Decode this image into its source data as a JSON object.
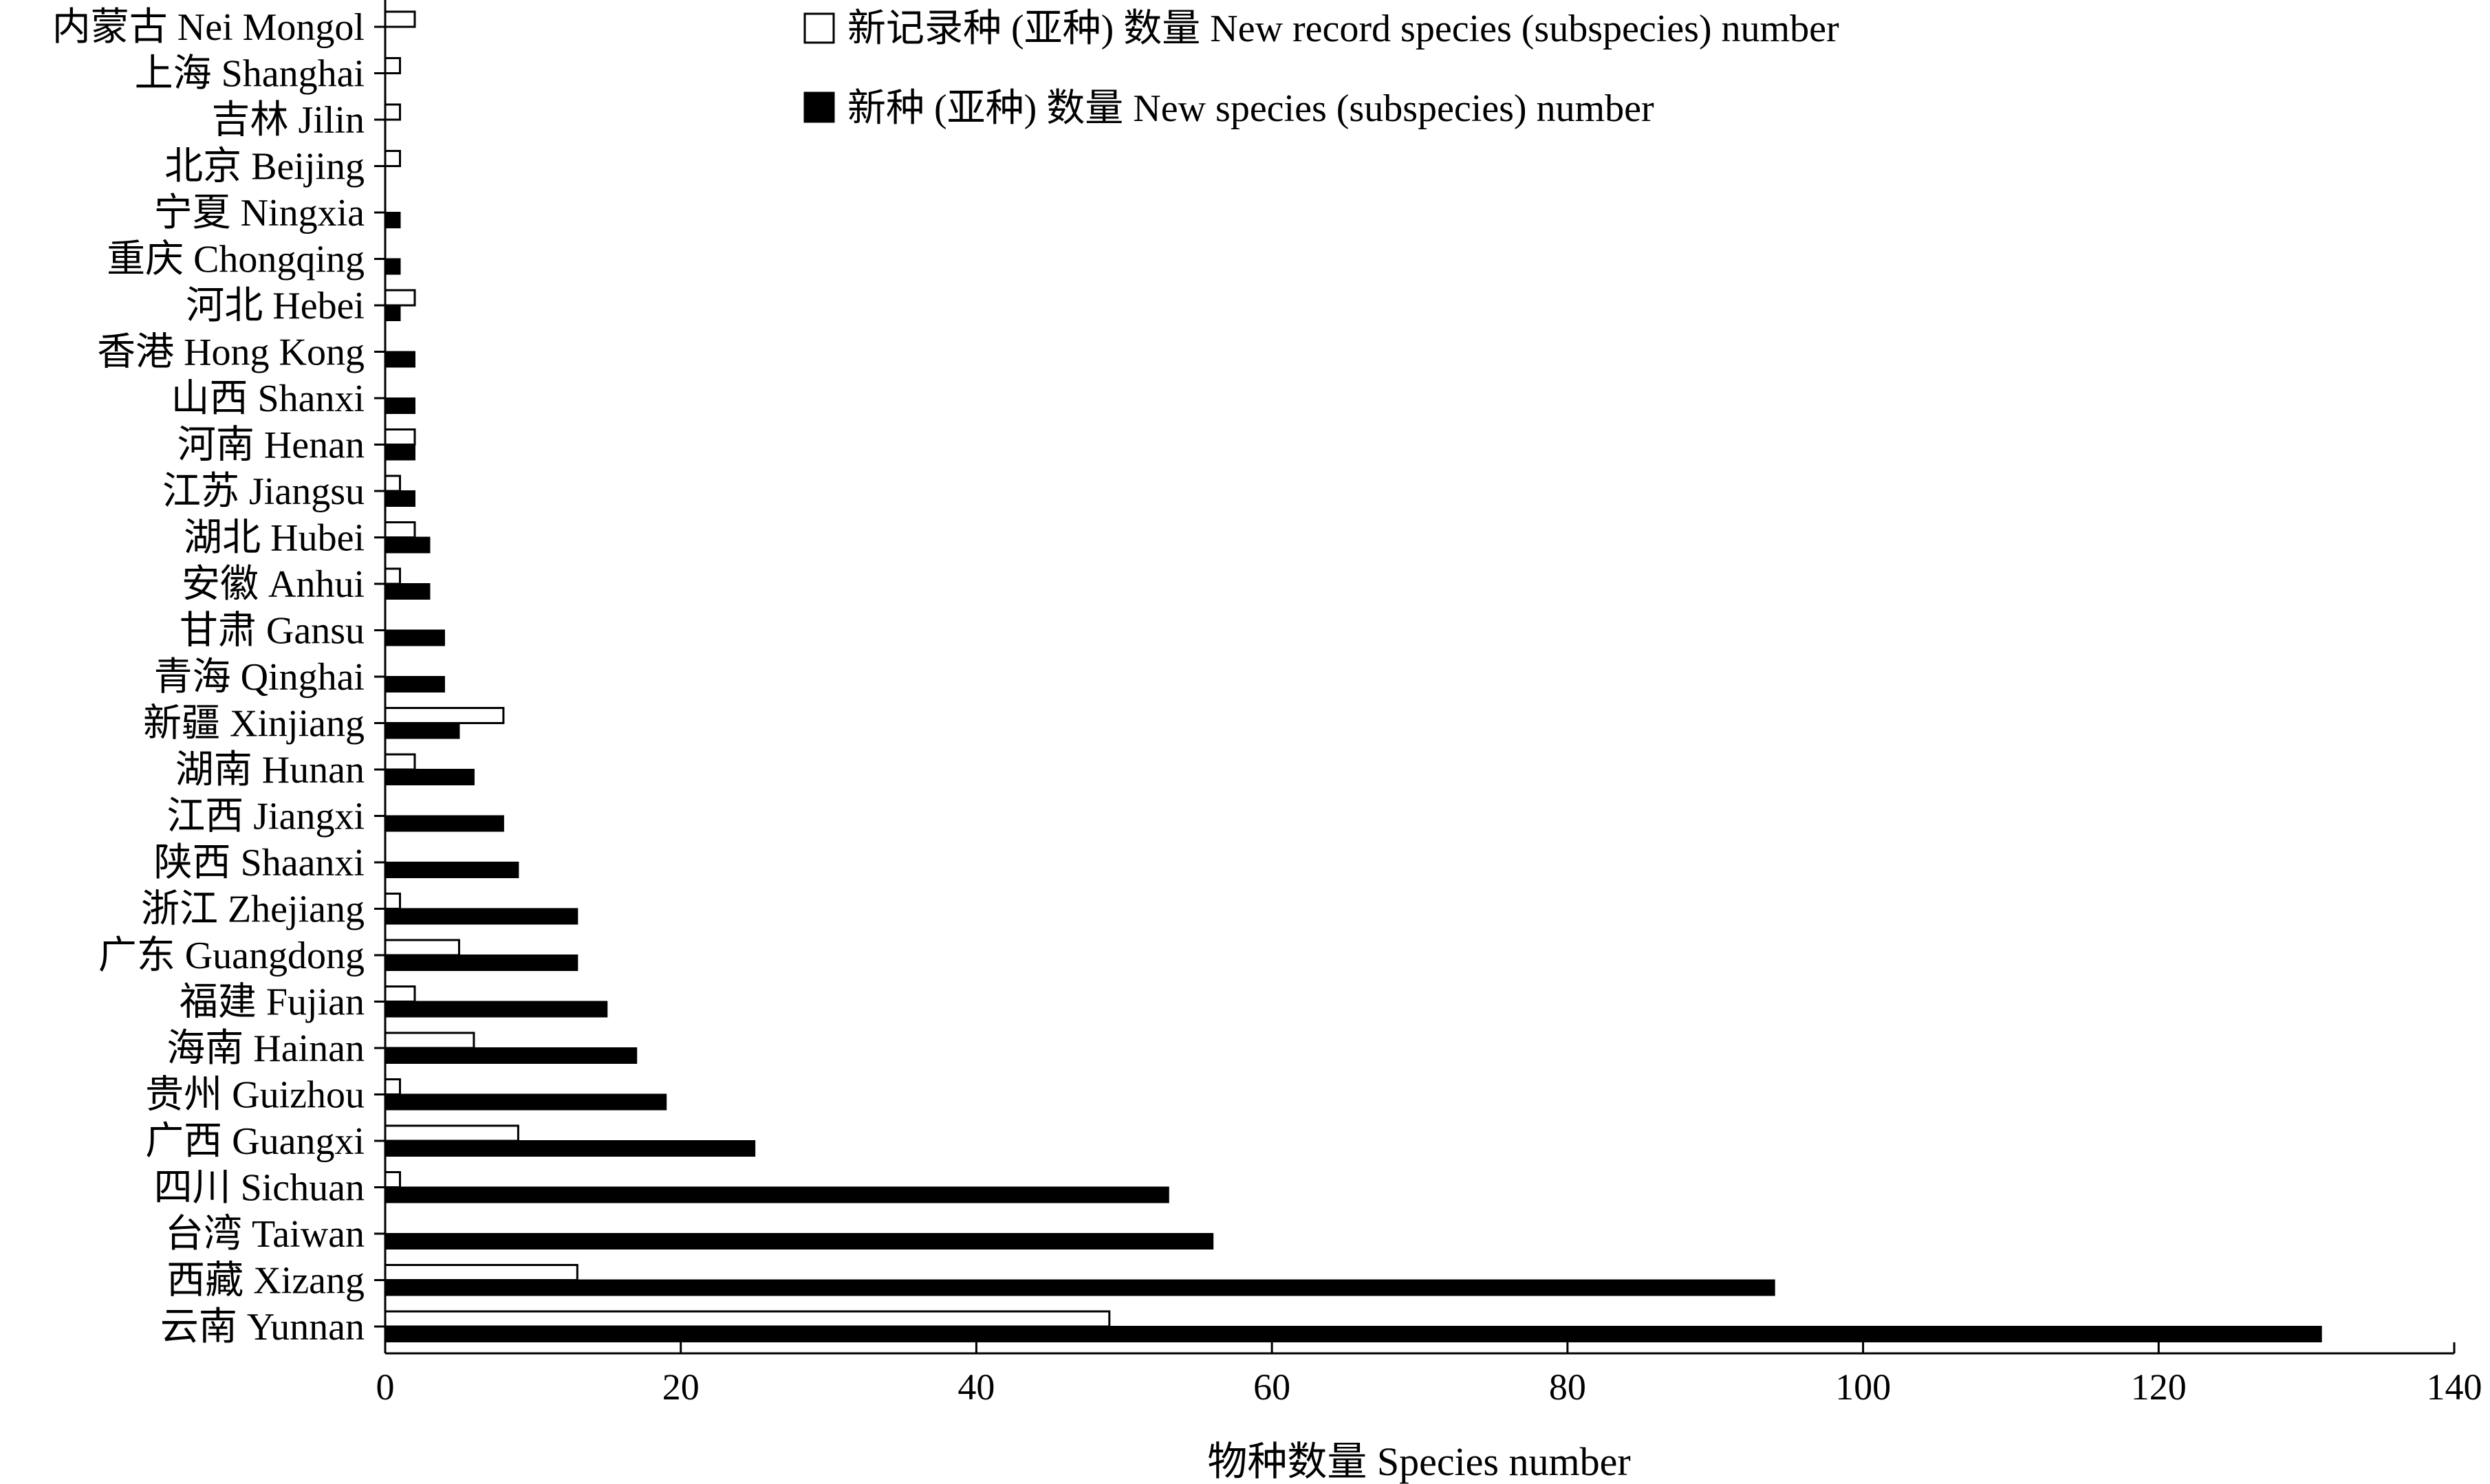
{
  "chart_data": {
    "type": "bar",
    "orientation": "horizontal",
    "categories": [
      "内蒙古 Nei Mongol",
      "上海 Shanghai",
      "吉林 Jilin",
      "北京 Beijing",
      "宁夏 Ningxia",
      "重庆 Chongqing",
      "河北 Hebei",
      "香港 Hong Kong",
      "山西 Shanxi",
      "河南 Henan",
      "江苏 Jiangsu",
      "湖北 Hubei",
      "安徽 Anhui",
      "甘肃 Gansu",
      "青海 Qinghai",
      "新疆 Xinjiang",
      "湖南 Hunan",
      "江西 Jiangxi",
      "陕西 Shaanxi",
      "浙江 Zhejiang",
      "广东 Guangdong",
      "福建 Fujian",
      "海南 Hainan",
      "贵州 Guizhou",
      "广西 Guangxi",
      "四川 Sichuan",
      "台湾 Taiwan",
      "西藏 Xizang",
      "云南 Yunnan"
    ],
    "series": [
      {
        "name": "新记录种 (亚种) 数量 New record species (subspecies) number",
        "color": "#ffffff",
        "values": [
          2,
          1,
          1,
          1,
          0,
          0,
          2,
          0,
          0,
          2,
          1,
          2,
          1,
          0,
          0,
          8,
          2,
          0,
          0,
          1,
          5,
          2,
          6,
          1,
          9,
          1,
          0,
          13,
          49
        ]
      },
      {
        "name": "新种 (亚种) 数量 New species (subspecies) number",
        "color": "#000000",
        "values": [
          0,
          0,
          0,
          0,
          1,
          1,
          1,
          2,
          2,
          2,
          2,
          3,
          3,
          4,
          4,
          5,
          6,
          8,
          9,
          13,
          13,
          15,
          17,
          19,
          25,
          53,
          56,
          94,
          131
        ]
      }
    ],
    "xlabel": "物种数量 Species number",
    "ylabel": "",
    "xlim": [
      0,
      140
    ],
    "xticks": [
      0,
      20,
      40,
      60,
      80,
      100,
      120,
      140
    ],
    "grid": false,
    "legend_position": "top-center"
  }
}
